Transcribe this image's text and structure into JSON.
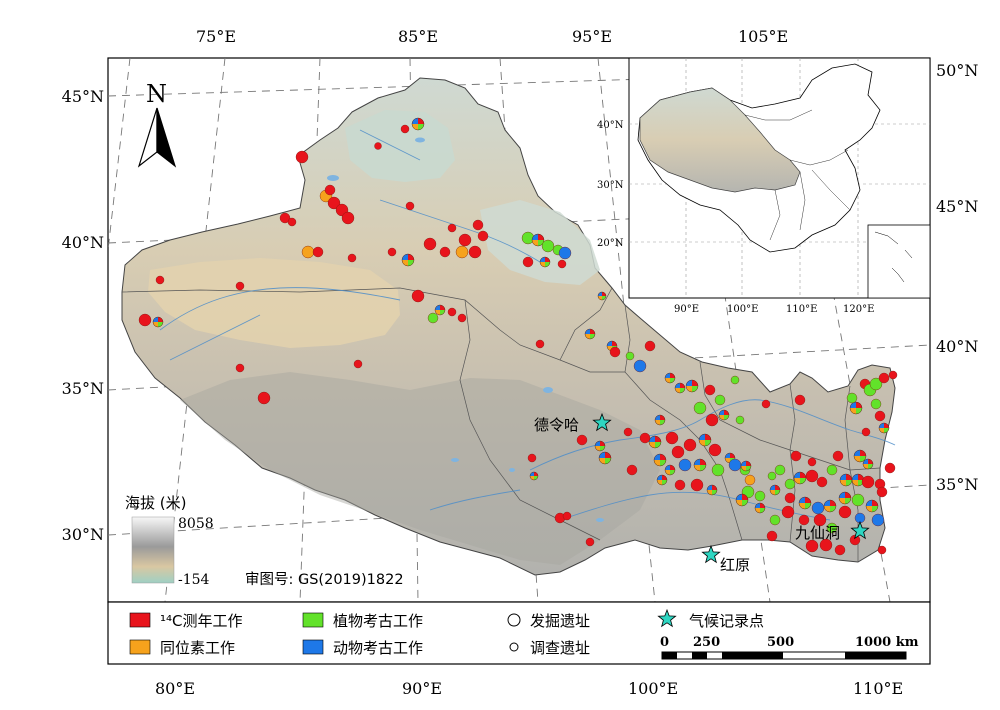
{
  "top_lon_labels": [
    "75°E",
    "85°E",
    "95°E",
    "105°E"
  ],
  "bottom_lon_labels": [
    "80°E",
    "90°E",
    "100°E",
    "110°E"
  ],
  "left_lat_labels": [
    "45°N",
    "40°N",
    "35°N",
    "30°N"
  ],
  "right_lat_labels": [
    "50°N",
    "45°N",
    "40°N",
    "35°N"
  ],
  "inset": {
    "lat_labels": [
      "40°N",
      "30°N",
      "20°N"
    ],
    "lon_labels": [
      "90°E",
      "100°E",
      "110°E",
      "120°E"
    ]
  },
  "north_label": "N",
  "elevation_legend": {
    "title": "海拔 (米)",
    "max": "8058",
    "min": "-154"
  },
  "approval_number": "审图号: GS(2019)1822",
  "place_labels": {
    "delingha": "德令哈",
    "jiuxiandong": "九仙洞",
    "hongyuan": "红原"
  },
  "legend": {
    "c14": "¹⁴C测年工作",
    "isotope": "同位素工作",
    "archaeobotany": "植物考古工作",
    "zooarchaeology": "动物考古工作",
    "excavated": "发掘遗址",
    "surveyed": "调查遗址",
    "climate": "气候记录点"
  },
  "scale_bar": {
    "ticks": [
      "0",
      "250",
      "500",
      "1000 km"
    ]
  },
  "colors": {
    "c14": "#e8141c",
    "isotope": "#f6a21c",
    "archaeobotany": "#62e22a",
    "zooarchaeology": "#1e78e8",
    "climate_star": "#2ed6c2"
  }
}
